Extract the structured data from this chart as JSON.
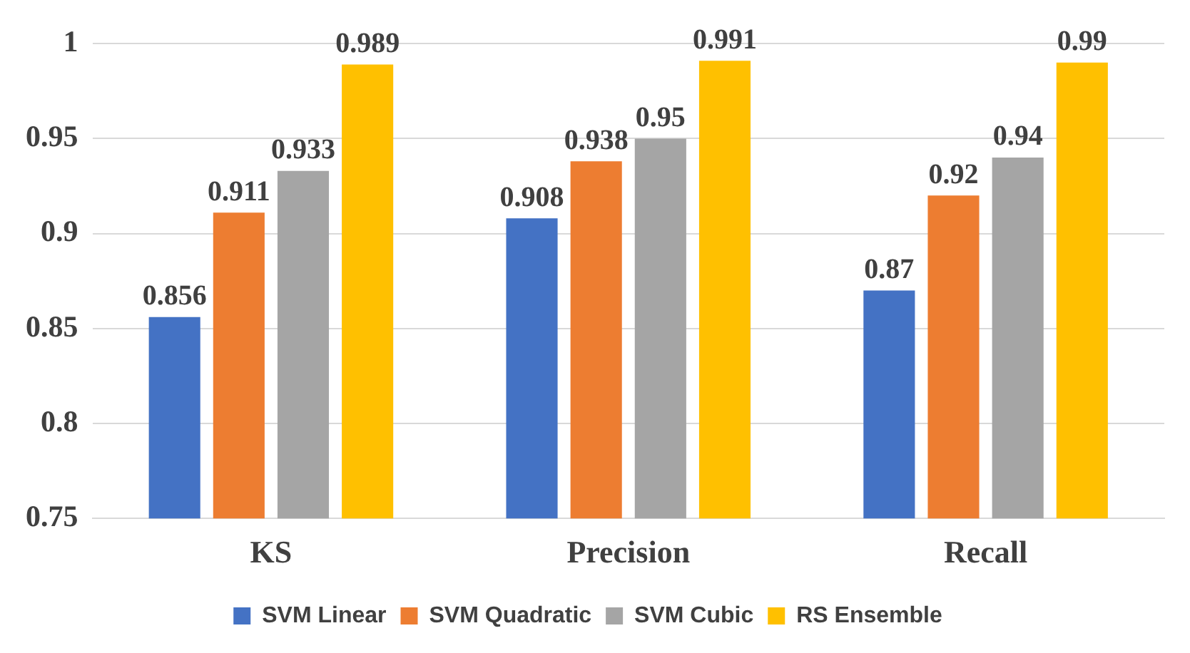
{
  "chart_data": {
    "type": "bar",
    "categories": [
      "KS",
      "Precision",
      "Recall"
    ],
    "series": [
      {
        "name": "SVM Linear",
        "color": "#4472c4",
        "values": [
          0.856,
          0.908,
          0.87
        ]
      },
      {
        "name": "SVM Quadratic",
        "color": "#ed7d31",
        "values": [
          0.911,
          0.938,
          0.92
        ]
      },
      {
        "name": "SVM Cubic",
        "color": "#a5a5a5",
        "values": [
          0.933,
          0.95,
          0.94
        ]
      },
      {
        "name": "RS Ensemble",
        "color": "#ffc000",
        "values": [
          0.989,
          0.991,
          0.99
        ]
      }
    ],
    "ylim": [
      0.75,
      1
    ],
    "yticks": [
      0.75,
      0.8,
      0.85,
      0.9,
      0.95,
      1
    ],
    "grid": "y",
    "legend": "bottom",
    "data_labels": true
  }
}
